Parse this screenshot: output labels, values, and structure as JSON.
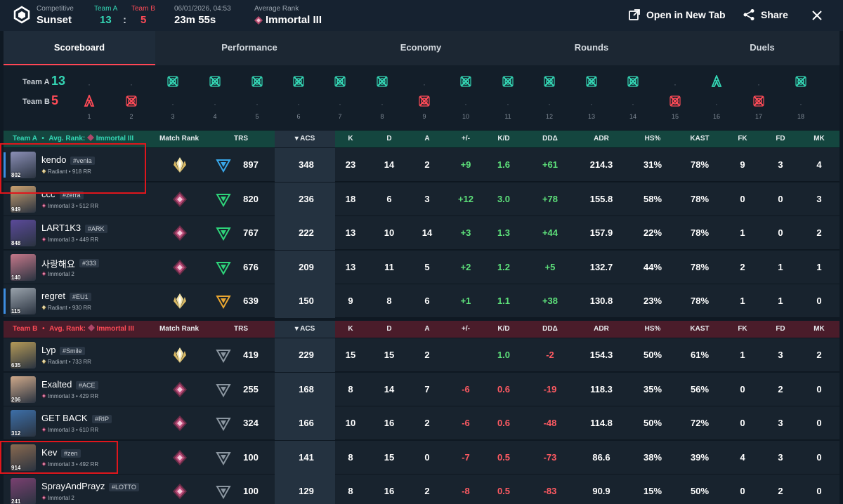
{
  "header": {
    "mode": "Competitive",
    "map": "Sunset",
    "team_a_label": "Team A",
    "team_b_label": "Team B",
    "team_a_score": "13",
    "team_b_score": "5",
    "sep": ":",
    "datetime": "06/01/2026, 04:53",
    "duration": "23m 55s",
    "avg_rank_label": "Average Rank",
    "avg_rank": "Immortal III",
    "open_new_tab": "Open in New Tab",
    "share": "Share"
  },
  "tabs": [
    "Scoreboard",
    "Performance",
    "Economy",
    "Rounds",
    "Duels"
  ],
  "timeline": {
    "team_a_label": "Team A",
    "team_a_score": "13",
    "team_b_label": "Team B",
    "team_b_score": "5",
    "rounds": [
      {
        "n": "1",
        "winner": "B",
        "icon": "spike-detonate-icon"
      },
      {
        "n": "2",
        "winner": "B",
        "icon": "elimination-icon"
      },
      {
        "n": "3",
        "winner": "A",
        "icon": "elimination-icon"
      },
      {
        "n": "4",
        "winner": "A",
        "icon": "elimination-icon"
      },
      {
        "n": "5",
        "winner": "A",
        "icon": "elimination-icon"
      },
      {
        "n": "6",
        "winner": "A",
        "icon": "elimination-icon"
      },
      {
        "n": "7",
        "winner": "A",
        "icon": "elimination-icon"
      },
      {
        "n": "8",
        "winner": "A",
        "icon": "elimination-icon"
      },
      {
        "n": "9",
        "winner": "B",
        "icon": "elimination-icon"
      },
      {
        "n": "10",
        "winner": "A",
        "icon": "elimination-icon"
      },
      {
        "n": "11",
        "winner": "A",
        "icon": "elimination-icon"
      },
      {
        "n": "12",
        "winner": "A",
        "icon": "elimination-icon"
      },
      {
        "n": "13",
        "winner": "A",
        "icon": "elimination-icon"
      },
      {
        "n": "14",
        "winner": "A",
        "icon": "elimination-icon"
      },
      {
        "n": "15",
        "winner": "B",
        "icon": "elimination-icon"
      },
      {
        "n": "16",
        "winner": "A",
        "icon": "spike-detonate-icon"
      },
      {
        "n": "17",
        "winner": "B",
        "icon": "elimination-icon"
      },
      {
        "n": "18",
        "winner": "A",
        "icon": "elimination-icon"
      }
    ]
  },
  "columns": [
    "Match Rank",
    "TRS",
    "ACS",
    "K",
    "D",
    "A",
    "+/-",
    "K/D",
    "DDΔ",
    "ADR",
    "HS%",
    "KAST",
    "FK",
    "FD",
    "MK"
  ],
  "team_a": {
    "label": "Team A",
    "bullet": "•",
    "avg_label": "Avg. Rank:",
    "avg_rank": "Immortal III",
    "players": [
      {
        "name": "kendo",
        "tag": "#venla",
        "level": "802",
        "rank": "Radiant • 918 RR",
        "match_rank": "radiant",
        "trs_tier": "blue",
        "trs": "897",
        "acs": "348",
        "k": "23",
        "d": "14",
        "a": "2",
        "pm": "+9",
        "kd": "1.6",
        "dd": "+61",
        "adr": "214.3",
        "hs": "31%",
        "kast": "78%",
        "fk": "9",
        "fd": "3",
        "mk": "4",
        "accent": true
      },
      {
        "name": "ccc",
        "tag": "#zerra",
        "level": "949",
        "rank": "Immortal 3 • 512 RR",
        "match_rank": "immortal",
        "trs_tier": "green",
        "trs": "820",
        "acs": "236",
        "k": "18",
        "d": "6",
        "a": "3",
        "pm": "+12",
        "kd": "3.0",
        "dd": "+78",
        "adr": "155.8",
        "hs": "58%",
        "kast": "78%",
        "fk": "0",
        "fd": "0",
        "mk": "3"
      },
      {
        "name": "LART1K3",
        "tag": "#ARK",
        "level": "848",
        "rank": "Immortal 3 • 449 RR",
        "match_rank": "immortal",
        "trs_tier": "green",
        "trs": "767",
        "acs": "222",
        "k": "13",
        "d": "10",
        "a": "14",
        "pm": "+3",
        "kd": "1.3",
        "dd": "+44",
        "adr": "157.9",
        "hs": "22%",
        "kast": "78%",
        "fk": "1",
        "fd": "0",
        "mk": "2"
      },
      {
        "name": "사랑해요",
        "tag": "#333",
        "level": "140",
        "rank": "Immortal 2",
        "match_rank": "immortal",
        "trs_tier": "green",
        "trs": "676",
        "acs": "209",
        "k": "13",
        "d": "11",
        "a": "5",
        "pm": "+2",
        "kd": "1.2",
        "dd": "+5",
        "adr": "132.7",
        "hs": "44%",
        "kast": "78%",
        "fk": "2",
        "fd": "1",
        "mk": "1"
      },
      {
        "name": "regret",
        "tag": "#EU1",
        "level": "115",
        "rank": "Radiant • 930 RR",
        "match_rank": "radiant",
        "trs_tier": "gold",
        "trs": "639",
        "acs": "150",
        "k": "9",
        "d": "8",
        "a": "6",
        "pm": "+1",
        "kd": "1.1",
        "dd": "+38",
        "adr": "130.8",
        "hs": "23%",
        "kast": "78%",
        "fk": "1",
        "fd": "1",
        "mk": "0",
        "accent": true
      }
    ]
  },
  "team_b": {
    "label": "Team B",
    "bullet": "•",
    "avg_label": "Avg. Rank:",
    "avg_rank": "Immortal III",
    "players": [
      {
        "name": "Lyp",
        "tag": "#Smile",
        "level": "635",
        "rank": "Radiant • 733 RR",
        "match_rank": "radiant",
        "trs_tier": "grey",
        "trs": "419",
        "acs": "229",
        "k": "15",
        "d": "15",
        "a": "2",
        "pm": "",
        "kd": "1.0",
        "dd": "-2",
        "adr": "154.3",
        "hs": "50%",
        "kast": "61%",
        "fk": "1",
        "fd": "3",
        "mk": "2"
      },
      {
        "name": "Exalted",
        "tag": "#ACE",
        "level": "206",
        "rank": "Immortal 3 • 429 RR",
        "match_rank": "immortal",
        "trs_tier": "grey",
        "trs": "255",
        "acs": "168",
        "k": "8",
        "d": "14",
        "a": "7",
        "pm": "-6",
        "kd": "0.6",
        "dd": "-19",
        "adr": "118.3",
        "hs": "35%",
        "kast": "56%",
        "fk": "0",
        "fd": "2",
        "mk": "0"
      },
      {
        "name": "GET BACK",
        "tag": "#RIP",
        "level": "312",
        "rank": "Immortal 3 • 610 RR",
        "match_rank": "immortal",
        "trs_tier": "grey",
        "trs": "324",
        "acs": "166",
        "k": "10",
        "d": "16",
        "a": "2",
        "pm": "-6",
        "kd": "0.6",
        "dd": "-48",
        "adr": "114.8",
        "hs": "50%",
        "kast": "72%",
        "fk": "0",
        "fd": "3",
        "mk": "0"
      },
      {
        "name": "Kev",
        "tag": "#zen",
        "level": "914",
        "rank": "Immortal 3 • 492 RR",
        "match_rank": "immortal",
        "trs_tier": "grey",
        "trs": "100",
        "acs": "141",
        "k": "8",
        "d": "15",
        "a": "0",
        "pm": "-7",
        "kd": "0.5",
        "dd": "-73",
        "adr": "86.6",
        "hs": "38%",
        "kast": "39%",
        "fk": "4",
        "fd": "3",
        "mk": "0"
      },
      {
        "name": "SprayAndPrayz",
        "tag": "#LOTTO",
        "level": "241",
        "rank": "Immortal 2",
        "match_rank": "immortal",
        "trs_tier": "grey",
        "trs": "100",
        "acs": "129",
        "k": "8",
        "d": "16",
        "a": "2",
        "pm": "-8",
        "kd": "0.5",
        "dd": "-83",
        "adr": "90.9",
        "hs": "15%",
        "kast": "50%",
        "fk": "0",
        "fd": "2",
        "mk": "0"
      }
    ]
  },
  "colors": {
    "team_a": "#34d6b4",
    "team_b": "#ff4b57",
    "positive": "#5de07a",
    "negative": "#ff5a62",
    "highlight_box": "#e0161c"
  }
}
